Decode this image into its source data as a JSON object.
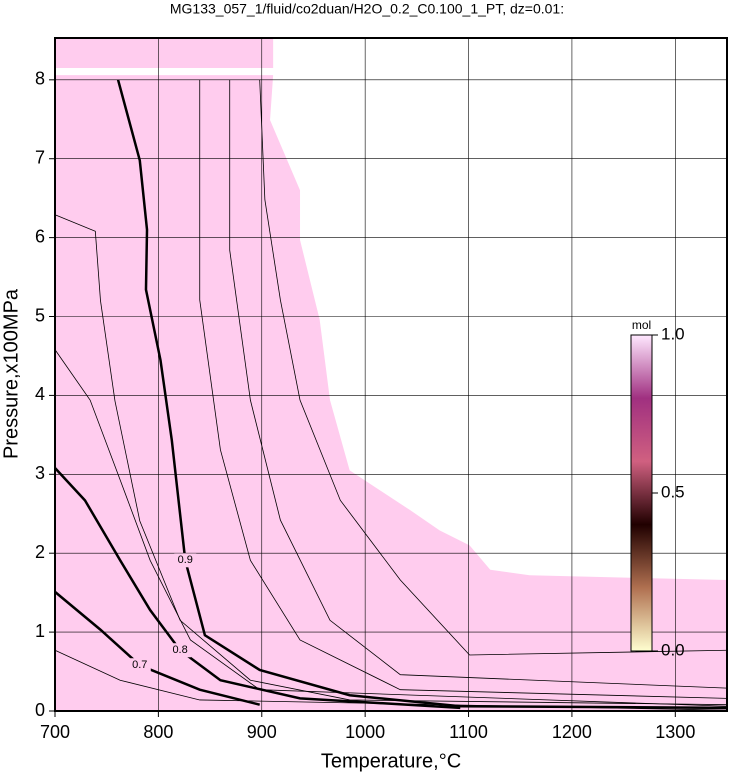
{
  "chart_data": {
    "type": "contour",
    "title": "MG133_057_1/fluid/co2duan/H2O_0.2_C0.100_1_PT, dz=0.01:",
    "x_label": "Temperature,°C",
    "y_label": "Pressure,x100MPa",
    "xlim": [
      700,
      1350
    ],
    "ylim": [
      0,
      8.53
    ],
    "xticks": [
      700,
      800,
      900,
      1000,
      1100,
      1200,
      1300
    ],
    "yticks": [
      0,
      1,
      2,
      3,
      4,
      5,
      6,
      7,
      8
    ],
    "grid": true,
    "region_color": "#ffccee",
    "regions": [
      {
        "x": [
          700,
          911,
          911,
          700
        ],
        "y": [
          8.53,
          8.53,
          8.15,
          8.15
        ]
      },
      {
        "x": [
          700,
          911,
          908,
          937,
          937,
          956,
          966,
          985,
          1014,
          1043,
          1072,
          1101,
          1121,
          1159,
          1350,
          1350,
          700
        ],
        "y": [
          8.06,
          8.06,
          7.49,
          6.6,
          5.97,
          4.96,
          3.94,
          3.05,
          2.8,
          2.55,
          2.29,
          2.1,
          1.79,
          1.72,
          1.66,
          0,
          0
        ]
      }
    ],
    "contours": [
      {
        "level": 0.9,
        "width": 2.5,
        "x": [
          761,
          782,
          789,
          788,
          802,
          813,
          826,
          845,
          898,
          985,
          1092,
          1350
        ],
        "y": [
          8.0,
          6.98,
          6.1,
          5.34,
          4.45,
          3.43,
          1.91,
          0.96,
          0.52,
          0.2,
          0.06,
          0.04
        ]
      },
      {
        "level": 0.8,
        "width": 2.5,
        "x": [
          700,
          729,
          763,
          792,
          821,
          860,
          937,
          1092
        ],
        "y": [
          3.08,
          2.67,
          1.91,
          1.28,
          0.77,
          0.39,
          0.16,
          0.04
        ]
      },
      {
        "level": 0.7,
        "width": 2.5,
        "x": [
          700,
          744,
          782,
          840,
          898
        ],
        "y": [
          1.51,
          1.03,
          0.58,
          0.27,
          0.08
        ]
      },
      {
        "level": null,
        "width": 0.8,
        "x": [
          700,
          739,
          744,
          758,
          782,
          821,
          889,
          985,
          1350
        ],
        "y": [
          6.29,
          6.08,
          5.2,
          3.93,
          2.41,
          1.15,
          0.39,
          0.14,
          0.08
        ]
      },
      {
        "level": null,
        "width": 0.8,
        "x": [
          898,
          903,
          918,
          937,
          976,
          1034,
          1101,
          1350
        ],
        "y": [
          8.0,
          6.48,
          5.21,
          3.94,
          2.67,
          1.66,
          0.71,
          0.77
        ]
      },
      {
        "level": null,
        "width": 0.8,
        "x": [
          869,
          869,
          889,
          918,
          966,
          1034,
          1350
        ],
        "y": [
          8.0,
          5.84,
          3.94,
          2.42,
          1.15,
          0.46,
          0.29
        ]
      },
      {
        "level": null,
        "width": 0.8,
        "x": [
          840,
          840,
          860,
          889,
          937,
          1034,
          1350
        ],
        "y": [
          8.0,
          5.21,
          3.31,
          1.91,
          0.9,
          0.27,
          0.16
        ]
      },
      {
        "level": null,
        "width": 0.8,
        "x": [
          700,
          734,
          763,
          792,
          831,
          898,
          1350
        ],
        "y": [
          4.58,
          3.94,
          2.93,
          1.91,
          0.9,
          0.27,
          0.06
        ]
      },
      {
        "level": null,
        "width": 0.8,
        "x": [
          700,
          763,
          840,
          1350
        ],
        "y": [
          0.77,
          0.39,
          0.14,
          0.01
        ]
      }
    ],
    "colorbar": {
      "label": "mol",
      "lim": [
        0,
        1
      ],
      "colors": [
        "#ffffd0",
        "#b07050",
        "#200000",
        "#d06080",
        "#a03080",
        "#ffe8ff"
      ],
      "ticks": [
        {
          "value": 0,
          "label": "0.0"
        },
        {
          "value": 0.5,
          "label": "0.5"
        },
        {
          "value": 1,
          "label": "1.0"
        }
      ]
    }
  }
}
